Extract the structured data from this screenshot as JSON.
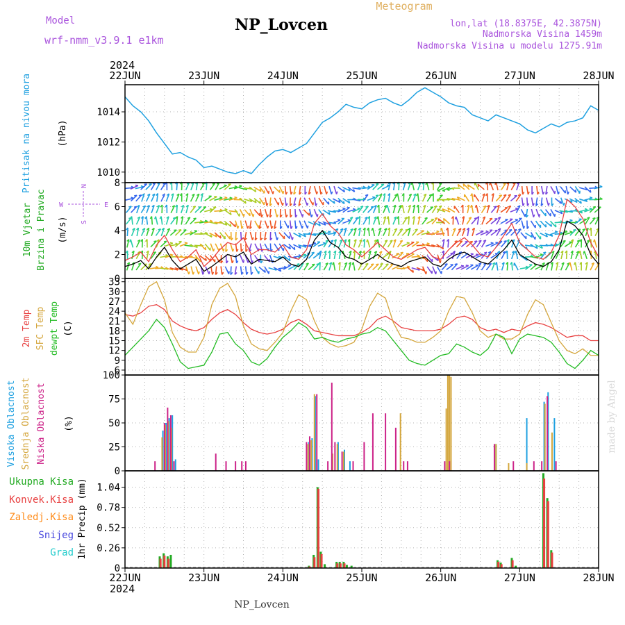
{
  "header": {
    "title": "NP_Lovcen",
    "model_label": "Model",
    "model_name": "wrf-nmm_v3.9.1  e1km",
    "meteogram_label": "Meteogram",
    "location_line": "lon,lat (18.8375E, 42.3875N)",
    "elevation_line": "Nadmorska Visina 1459m",
    "model_elevation_line": "Nadmorska Visina u modelu 1275.91m",
    "year": "2024",
    "footer_title": "NP_Lovcen",
    "credit": "made by Angel"
  },
  "x_axis": {
    "dates": [
      "22JUN",
      "23JUN",
      "24JUN",
      "25JUN",
      "26JUN",
      "27JUN",
      "28JUN"
    ],
    "year": "2024"
  },
  "wind_compass": {
    "north": "N",
    "south": "S",
    "east": "E",
    "west": "W"
  },
  "colors": {
    "pressure": "#1ea0e0",
    "wind_speed": "#000000",
    "wind_gust": "#e84040",
    "temp_2m": "#e84040",
    "temp_sfc": "#d4a63c",
    "dewpoint": "#22bb22",
    "cloud_high": "#1ea0e0",
    "cloud_mid": "#d4a63c",
    "cloud_low": "#cc2288",
    "precip_total": "#22aa22",
    "precip_conv": "#e84040",
    "precip_frozen": "#ff8c1a",
    "snow": "#4444dd",
    "hail": "#22cccc",
    "compass": "#aa55dd",
    "title_purple": "#aa55dd",
    "meteogram": "#e0b060"
  },
  "chart_data": [
    {
      "type": "line",
      "panel": "pressure",
      "ylabel": [
        "Pritisak na nivou mora",
        "(hPa)"
      ],
      "y_ticks": [
        1010,
        1012,
        1014
      ],
      "ylim": [
        1009.3,
        1015.8
      ],
      "x_unit": "days since 22JUN 00UTC",
      "x": [
        0,
        0.1,
        0.2,
        0.3,
        0.4,
        0.5,
        0.6,
        0.7,
        0.8,
        0.9,
        1.0,
        1.1,
        1.2,
        1.3,
        1.4,
        1.5,
        1.6,
        1.7,
        1.8,
        1.9,
        2.0,
        2.1,
        2.2,
        2.3,
        2.4,
        2.5,
        2.6,
        2.7,
        2.8,
        2.9,
        3.0,
        3.1,
        3.2,
        3.3,
        3.4,
        3.5,
        3.6,
        3.7,
        3.8,
        3.9,
        4.0,
        4.1,
        4.2,
        4.3,
        4.4,
        4.5,
        4.6,
        4.7,
        4.8,
        4.9,
        5.0,
        5.1,
        5.2,
        5.3,
        5.4,
        5.5,
        5.6,
        5.7,
        5.8,
        5.9,
        6.0
      ],
      "values": [
        1015.0,
        1014.4,
        1014.0,
        1013.4,
        1012.6,
        1011.9,
        1011.2,
        1011.3,
        1011.0,
        1010.8,
        1010.3,
        1010.4,
        1010.2,
        1010.0,
        1009.9,
        1010.1,
        1009.9,
        1010.5,
        1011.0,
        1011.4,
        1011.5,
        1011.3,
        1011.6,
        1011.9,
        1012.6,
        1013.3,
        1013.6,
        1014.0,
        1014.5,
        1014.3,
        1014.2,
        1014.6,
        1014.8,
        1014.9,
        1014.6,
        1014.4,
        1014.8,
        1015.3,
        1015.6,
        1015.3,
        1015.0,
        1014.6,
        1014.4,
        1014.3,
        1013.8,
        1013.6,
        1013.4,
        1013.8,
        1013.6,
        1013.4,
        1013.2,
        1012.8,
        1012.6,
        1012.9,
        1013.2,
        1013.0,
        1013.3,
        1013.4,
        1013.6,
        1014.4,
        1014.1
      ]
    },
    {
      "type": "line",
      "panel": "wind",
      "ylabel": [
        "10m Vjetar",
        "Brzina i Pravac",
        "(m/s)"
      ],
      "y_ticks": [
        0,
        2,
        4,
        6,
        8
      ],
      "ylim": [
        0,
        8
      ],
      "x": [
        0,
        0.1,
        0.2,
        0.3,
        0.4,
        0.5,
        0.6,
        0.7,
        0.8,
        0.9,
        1.0,
        1.1,
        1.2,
        1.3,
        1.4,
        1.5,
        1.6,
        1.7,
        1.8,
        1.9,
        2.0,
        2.1,
        2.2,
        2.3,
        2.4,
        2.5,
        2.6,
        2.7,
        2.8,
        2.9,
        3.0,
        3.1,
        3.2,
        3.3,
        3.4,
        3.5,
        3.6,
        3.7,
        3.8,
        3.9,
        4.0,
        4.1,
        4.2,
        4.3,
        4.4,
        4.5,
        4.6,
        4.7,
        4.8,
        4.9,
        5.0,
        5.1,
        5.2,
        5.3,
        5.4,
        5.5,
        5.6,
        5.7,
        5.8,
        5.9,
        6.0
      ],
      "series": [
        {
          "values": [
            1.0,
            1.2,
            1.5,
            0.8,
            1.8,
            2.6,
            1.5,
            0.8,
            1.2,
            1.6,
            0.6,
            1.0,
            1.5,
            2.0,
            1.8,
            2.2,
            1.2,
            1.6,
            1.5,
            1.4,
            1.8,
            1.2,
            1.0,
            1.6,
            3.2,
            4.0,
            3.0,
            2.6,
            1.8,
            1.6,
            1.2,
            1.6,
            2.0,
            1.5,
            1.2,
            1.0,
            1.4,
            1.6,
            1.8,
            1.2,
            1.0,
            1.6,
            2.0,
            2.2,
            1.8,
            1.4,
            1.2,
            1.8,
            2.4,
            3.2,
            2.0,
            1.6,
            1.2,
            1.0,
            1.4,
            2.4,
            4.8,
            4.4,
            3.6,
            2.0,
            1.2
          ]
        },
        {
          "values": [
            1.5,
            1.8,
            2.2,
            1.4,
            2.8,
            3.6,
            2.4,
            1.4,
            1.8,
            2.4,
            1.0,
            1.6,
            2.4,
            3.0,
            2.8,
            3.4,
            2.0,
            2.4,
            2.4,
            2.2,
            2.8,
            1.8,
            1.6,
            2.4,
            4.6,
            5.4,
            4.4,
            3.8,
            2.8,
            2.4,
            1.8,
            2.4,
            3.0,
            2.4,
            1.8,
            1.6,
            2.0,
            2.4,
            2.6,
            1.8,
            1.6,
            2.4,
            3.0,
            3.4,
            2.8,
            2.0,
            1.8,
            2.6,
            3.6,
            4.6,
            3.0,
            2.4,
            1.8,
            1.6,
            2.2,
            3.6,
            6.6,
            6.0,
            5.0,
            3.0,
            1.8
          ]
        }
      ]
    },
    {
      "type": "line",
      "panel": "temperature",
      "ylabel": [
        "2m Temp",
        "SFC Temp",
        "dewpt Temp",
        "(C)"
      ],
      "y_ticks": [
        6,
        9,
        12,
        15,
        18,
        21,
        24,
        27,
        30,
        33
      ],
      "ylim": [
        4.5,
        34
      ],
      "x": [
        0,
        0.1,
        0.2,
        0.3,
        0.4,
        0.5,
        0.6,
        0.7,
        0.8,
        0.9,
        1.0,
        1.1,
        1.2,
        1.3,
        1.4,
        1.5,
        1.6,
        1.7,
        1.8,
        1.9,
        2.0,
        2.1,
        2.2,
        2.3,
        2.4,
        2.5,
        2.6,
        2.7,
        2.8,
        2.9,
        3.0,
        3.1,
        3.2,
        3.3,
        3.4,
        3.5,
        3.6,
        3.7,
        3.8,
        3.9,
        4.0,
        4.1,
        4.2,
        4.3,
        4.4,
        4.5,
        4.6,
        4.7,
        4.8,
        4.9,
        5.0,
        5.1,
        5.2,
        5.3,
        5.4,
        5.5,
        5.6,
        5.7,
        5.8,
        5.9,
        6.0
      ],
      "series": [
        {
          "values": [
            23.0,
            22.5,
            23.5,
            25.5,
            26.0,
            24.5,
            21.0,
            19.5,
            18.5,
            18.0,
            19.0,
            21.5,
            23.5,
            24.5,
            23.0,
            20.5,
            18.5,
            17.5,
            17.0,
            17.5,
            18.5,
            20.5,
            21.5,
            20.0,
            18.0,
            17.5,
            17.0,
            16.5,
            16.5,
            16.5,
            17.5,
            19.0,
            21.5,
            22.5,
            21.0,
            19.0,
            18.5,
            18.0,
            18.0,
            18.0,
            18.5,
            20.0,
            22.0,
            22.5,
            21.5,
            19.0,
            18.0,
            18.5,
            17.5,
            18.5,
            18.0,
            19.5,
            20.5,
            20.0,
            19.0,
            17.5,
            16.0,
            16.5,
            16.5,
            15.0,
            15.0
          ]
        },
        {
          "values": [
            23.5,
            20.0,
            26.0,
            31.5,
            33.0,
            27.5,
            17.5,
            13.0,
            11.5,
            11.5,
            16.0,
            26.0,
            31.0,
            32.5,
            28.5,
            19.5,
            14.0,
            12.5,
            12.0,
            14.5,
            17.5,
            24.0,
            29.0,
            27.5,
            21.0,
            16.0,
            14.0,
            13.0,
            13.5,
            14.5,
            18.5,
            25.5,
            29.5,
            28.0,
            20.5,
            16.0,
            15.5,
            14.5,
            14.5,
            16.0,
            18.0,
            24.0,
            28.5,
            28.0,
            23.5,
            18.0,
            16.0,
            17.0,
            15.5,
            15.5,
            17.0,
            23.0,
            27.5,
            26.0,
            20.5,
            15.0,
            12.0,
            11.0,
            12.5,
            10.5,
            10.5
          ]
        },
        {
          "values": [
            10.5,
            13.0,
            15.5,
            18.0,
            21.5,
            19.0,
            14.0,
            8.5,
            6.5,
            7.0,
            7.5,
            11.5,
            17.0,
            17.5,
            14.0,
            12.0,
            8.5,
            7.5,
            9.5,
            13.0,
            16.0,
            18.0,
            20.5,
            19.0,
            15.5,
            16.0,
            15.0,
            14.5,
            15.5,
            16.0,
            17.0,
            17.5,
            19.0,
            18.0,
            15.0,
            12.0,
            9.0,
            8.0,
            7.5,
            9.0,
            10.5,
            11.0,
            14.0,
            13.0,
            11.5,
            10.5,
            12.5,
            17.0,
            16.0,
            11.0,
            15.5,
            17.0,
            16.5,
            16.0,
            14.5,
            11.5,
            8.0,
            6.5,
            9.0,
            12.0,
            10.5
          ]
        }
      ]
    },
    {
      "type": "bar",
      "panel": "clouds",
      "ylabel": [
        "Visoka Oblacnost",
        "Srednja Oblacnost",
        "Niska Oblacnost",
        "(%)"
      ],
      "y_ticks": [
        0,
        25,
        50,
        75,
        100
      ],
      "ylim": [
        0,
        100
      ],
      "series": [
        {
          "key": "high",
          "x": [
            0.48,
            0.52,
            0.56,
            0.6,
            0.64,
            2.33,
            2.37,
            2.41,
            2.45,
            2.7,
            2.78,
            2.85,
            4.7,
            5.09,
            5.31,
            5.36,
            5.44
          ],
          "values": [
            42,
            50,
            55,
            58,
            12,
            30,
            34,
            78,
            12,
            30,
            22,
            10,
            28,
            55,
            72,
            82,
            55
          ]
        },
        {
          "key": "mid",
          "x": [
            0.47,
            0.51,
            0.55,
            0.59,
            2.32,
            2.36,
            2.4,
            2.63,
            2.69,
            2.77,
            3.49,
            4.07,
            4.09,
            4.11,
            4.13,
            4.7,
            4.86,
            5.09,
            5.32,
            5.41
          ],
          "values": [
            35,
            48,
            52,
            45,
            28,
            32,
            80,
            18,
            28,
            20,
            60,
            65,
            100,
            100,
            98,
            28,
            8,
            8,
            70,
            40
          ]
        },
        {
          "key": "low",
          "x": [
            0.38,
            0.5,
            0.54,
            0.58,
            0.62,
            1.15,
            1.28,
            1.4,
            1.48,
            1.53,
            2.3,
            2.34,
            2.43,
            2.57,
            2.62,
            2.66,
            2.75,
            2.89,
            3.03,
            3.14,
            3.3,
            3.43,
            3.53,
            3.58,
            4.05,
            4.11,
            4.68,
            4.92,
            5.18,
            5.28,
            5.35,
            5.46
          ],
          "values": [
            10,
            50,
            66,
            58,
            10,
            18,
            10,
            10,
            10,
            10,
            30,
            36,
            80,
            10,
            92,
            30,
            20,
            10,
            30,
            60,
            60,
            45,
            10,
            10,
            10,
            10,
            28,
            10,
            10,
            10,
            78,
            10
          ]
        }
      ]
    },
    {
      "type": "bar",
      "panel": "precipitation",
      "ylabel": [
        "1hr Precip (mm)"
      ],
      "legend": [
        "Ukupna Kisa",
        "Konvek.Kisa",
        "Zaledj.Kisa",
        "Snijeg",
        "Grad"
      ],
      "y_ticks": [
        0,
        0.26,
        0.52,
        0.78,
        1.04
      ],
      "ylim": [
        0,
        1.25
      ],
      "series": [
        {
          "key": "total",
          "x": [
            0.44,
            0.49,
            0.54,
            0.58,
            2.33,
            2.39,
            2.44,
            2.48,
            2.53,
            2.68,
            2.72,
            2.77,
            2.81,
            2.87,
            4.72,
            4.76,
            4.9,
            4.95,
            5.3,
            5.35,
            5.4
          ],
          "values": [
            0.15,
            0.19,
            0.15,
            0.17,
            0.03,
            0.17,
            1.04,
            0.21,
            0.05,
            0.08,
            0.08,
            0.08,
            0.04,
            0.03,
            0.1,
            0.07,
            0.13,
            0.03,
            1.22,
            0.9,
            0.23
          ]
        },
        {
          "key": "convective",
          "x": [
            0.45,
            0.5,
            0.55,
            2.34,
            2.4,
            2.45,
            2.49,
            2.69,
            2.73,
            2.78,
            4.73,
            4.77,
            4.91,
            5.31,
            5.36,
            5.41
          ],
          "values": [
            0.12,
            0.16,
            0.12,
            0.02,
            0.14,
            1.02,
            0.18,
            0.06,
            0.06,
            0.06,
            0.08,
            0.05,
            0.1,
            1.15,
            0.86,
            0.2
          ]
        }
      ]
    }
  ]
}
